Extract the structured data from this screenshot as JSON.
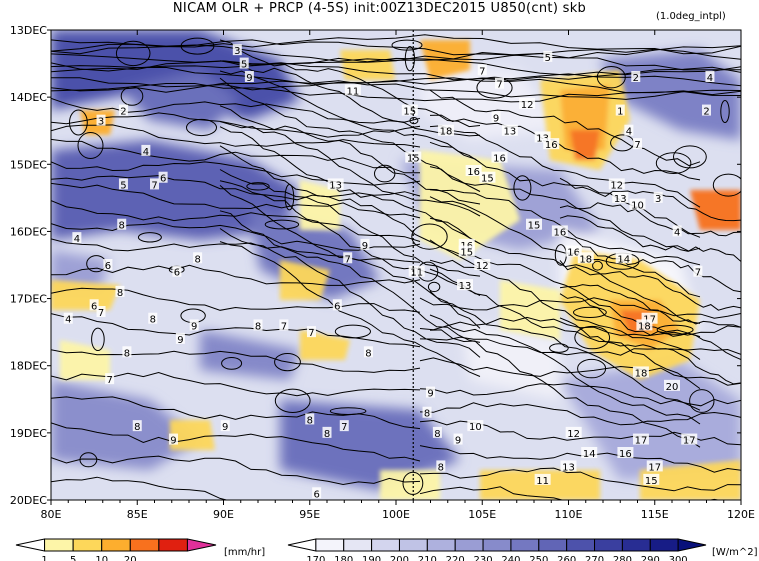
{
  "title": "NICAM  OLR + PRCP (4-5S) init:00Z13DEC2015  U850(cnt) skb",
  "note": "(1.0deg_intpl)",
  "chart_data": {
    "type": "heatmap",
    "x_tick_labels": [
      "80E",
      "85E",
      "90E",
      "95E",
      "100E",
      "105E",
      "110E",
      "115E",
      "120E"
    ],
    "x_tick_values": [
      80,
      85,
      90,
      95,
      100,
      105,
      110,
      115,
      120
    ],
    "y_tick_labels": [
      "13DEC",
      "14DEC",
      "15DEC",
      "16DEC",
      "17DEC",
      "18DEC",
      "19DEC",
      "20DEC"
    ],
    "y_tick_values": [
      13,
      14,
      15,
      16,
      17,
      18,
      19,
      20
    ],
    "xlim": [
      80,
      120
    ],
    "ylim": [
      13,
      20
    ],
    "reference_line_x": 101,
    "precip_legend": {
      "labels": [
        "1",
        "5",
        "10",
        "20"
      ],
      "unit": "[mm/hr]",
      "colors": [
        "#ffffff",
        "#fdf5a8",
        "#fdd75a",
        "#fdae2e",
        "#f8711e",
        "#e02010",
        "#e0309a"
      ]
    },
    "olr_legend": {
      "labels": [
        "170",
        "180",
        "190",
        "200",
        "210",
        "220",
        "230",
        "240",
        "250",
        "260",
        "270",
        "280",
        "290",
        "300"
      ],
      "unit": "[W/m^2]",
      "colors": [
        "#ffffff",
        "#f4f4fb",
        "#e5e6f4",
        "#d3d5ee",
        "#c0c3e6",
        "#aeb1de",
        "#9a9dd4",
        "#878bcb",
        "#7478c1",
        "#6165b6",
        "#4d52ab",
        "#3a3f9f",
        "#282d93",
        "#171c86",
        "#08107a"
      ]
    },
    "contour_labels": [
      {
        "x": 84.2,
        "y": 14.2,
        "t": "2"
      },
      {
        "x": 82.9,
        "y": 14.35,
        "t": "3"
      },
      {
        "x": 85.5,
        "y": 14.8,
        "t": "4"
      },
      {
        "x": 84.2,
        "y": 15.3,
        "t": "5"
      },
      {
        "x": 86.5,
        "y": 15.2,
        "t": "6"
      },
      {
        "x": 86.0,
        "y": 15.3,
        "t": "7"
      },
      {
        "x": 84.1,
        "y": 15.9,
        "t": "8"
      },
      {
        "x": 83.3,
        "y": 16.5,
        "t": "6"
      },
      {
        "x": 81.5,
        "y": 16.1,
        "t": "4"
      },
      {
        "x": 84.0,
        "y": 16.9,
        "t": "8"
      },
      {
        "x": 82.5,
        "y": 17.1,
        "t": "6"
      },
      {
        "x": 81.0,
        "y": 17.3,
        "t": "4"
      },
      {
        "x": 82.9,
        "y": 17.2,
        "t": "7"
      },
      {
        "x": 85.9,
        "y": 17.3,
        "t": "8"
      },
      {
        "x": 87.5,
        "y": 17.6,
        "t": "9"
      },
      {
        "x": 84.4,
        "y": 17.8,
        "t": "8"
      },
      {
        "x": 83.4,
        "y": 18.2,
        "t": "7"
      },
      {
        "x": 85.0,
        "y": 18.9,
        "t": "8"
      },
      {
        "x": 87.1,
        "y": 19.1,
        "t": "9"
      },
      {
        "x": 90.1,
        "y": 18.9,
        "t": "9"
      },
      {
        "x": 87.3,
        "y": 16.6,
        "t": "6"
      },
      {
        "x": 88.3,
        "y": 17.4,
        "t": "9"
      },
      {
        "x": 88.5,
        "y": 16.4,
        "t": "8"
      },
      {
        "x": 92.0,
        "y": 17.4,
        "t": "8"
      },
      {
        "x": 93.5,
        "y": 17.4,
        "t": "7"
      },
      {
        "x": 95.1,
        "y": 17.5,
        "t": "7"
      },
      {
        "x": 96.6,
        "y": 17.1,
        "t": "6"
      },
      {
        "x": 97.2,
        "y": 16.4,
        "t": "7"
      },
      {
        "x": 98.2,
        "y": 16.2,
        "t": "9"
      },
      {
        "x": 96.5,
        "y": 15.3,
        "t": "13"
      },
      {
        "x": 90.8,
        "y": 13.3,
        "t": "3"
      },
      {
        "x": 91.2,
        "y": 13.5,
        "t": "5"
      },
      {
        "x": 91.5,
        "y": 13.7,
        "t": "9"
      },
      {
        "x": 97.5,
        "y": 13.9,
        "t": "11"
      },
      {
        "x": 100.8,
        "y": 14.2,
        "t": "15"
      },
      {
        "x": 101.0,
        "y": 14.9,
        "t": "15"
      },
      {
        "x": 102.9,
        "y": 14.5,
        "t": "18"
      },
      {
        "x": 106.0,
        "y": 14.9,
        "t": "16"
      },
      {
        "x": 106.6,
        "y": 14.5,
        "t": "13"
      },
      {
        "x": 105.8,
        "y": 14.3,
        "t": "9"
      },
      {
        "x": 107.6,
        "y": 14.1,
        "t": "12"
      },
      {
        "x": 106.0,
        "y": 13.8,
        "t": "7"
      },
      {
        "x": 105.0,
        "y": 13.6,
        "t": "7"
      },
      {
        "x": 108.8,
        "y": 13.4,
        "t": "5"
      },
      {
        "x": 104.5,
        "y": 15.1,
        "t": "16"
      },
      {
        "x": 105.3,
        "y": 15.2,
        "t": "15"
      },
      {
        "x": 108.5,
        "y": 14.6,
        "t": "13"
      },
      {
        "x": 109.0,
        "y": 14.7,
        "t": "16"
      },
      {
        "x": 109.5,
        "y": 16.0,
        "t": "16"
      },
      {
        "x": 110.3,
        "y": 16.3,
        "t": "16"
      },
      {
        "x": 108.0,
        "y": 15.9,
        "t": "15"
      },
      {
        "x": 104.1,
        "y": 16.2,
        "t": "16"
      },
      {
        "x": 104.1,
        "y": 16.3,
        "t": "15"
      },
      {
        "x": 101.2,
        "y": 16.6,
        "t": "11"
      },
      {
        "x": 104.0,
        "y": 16.8,
        "t": "13"
      },
      {
        "x": 105.0,
        "y": 16.5,
        "t": "12"
      },
      {
        "x": 113.0,
        "y": 14.2,
        "t": "1"
      },
      {
        "x": 113.9,
        "y": 13.7,
        "t": "2"
      },
      {
        "x": 118.2,
        "y": 13.7,
        "t": "4"
      },
      {
        "x": 118.0,
        "y": 14.2,
        "t": "2"
      },
      {
        "x": 113.5,
        "y": 14.5,
        "t": "4"
      },
      {
        "x": 114.0,
        "y": 14.7,
        "t": "7"
      },
      {
        "x": 112.8,
        "y": 15.3,
        "t": "12"
      },
      {
        "x": 113.0,
        "y": 15.5,
        "t": "13"
      },
      {
        "x": 114.0,
        "y": 15.6,
        "t": "10"
      },
      {
        "x": 115.2,
        "y": 15.5,
        "t": "3"
      },
      {
        "x": 116.3,
        "y": 16.0,
        "t": "4"
      },
      {
        "x": 117.5,
        "y": 16.6,
        "t": "7"
      },
      {
        "x": 113.2,
        "y": 16.4,
        "t": "14"
      },
      {
        "x": 111.0,
        "y": 16.4,
        "t": "18"
      },
      {
        "x": 114.7,
        "y": 17.3,
        "t": "17"
      },
      {
        "x": 114.4,
        "y": 17.4,
        "t": "18"
      },
      {
        "x": 114.2,
        "y": 18.1,
        "t": "18"
      },
      {
        "x": 116.0,
        "y": 18.3,
        "t": "20"
      },
      {
        "x": 114.2,
        "y": 19.1,
        "t": "17"
      },
      {
        "x": 117.0,
        "y": 19.1,
        "t": "17"
      },
      {
        "x": 115.0,
        "y": 19.5,
        "t": "17"
      },
      {
        "x": 113.3,
        "y": 19.3,
        "t": "16"
      },
      {
        "x": 110.3,
        "y": 19.0,
        "t": "12"
      },
      {
        "x": 111.2,
        "y": 19.3,
        "t": "14"
      },
      {
        "x": 110.0,
        "y": 19.5,
        "t": "13"
      },
      {
        "x": 108.5,
        "y": 19.7,
        "t": "11"
      },
      {
        "x": 114.8,
        "y": 19.7,
        "t": "15"
      },
      {
        "x": 104.6,
        "y": 18.9,
        "t": "10"
      },
      {
        "x": 103.6,
        "y": 19.1,
        "t": "9"
      },
      {
        "x": 102.0,
        "y": 18.4,
        "t": "9"
      },
      {
        "x": 101.8,
        "y": 18.7,
        "t": "8"
      },
      {
        "x": 102.6,
        "y": 19.5,
        "t": "8"
      },
      {
        "x": 98.4,
        "y": 17.8,
        "t": "8"
      },
      {
        "x": 97.0,
        "y": 18.9,
        "t": "7"
      },
      {
        "x": 96.0,
        "y": 19.0,
        "t": "8"
      },
      {
        "x": 95.0,
        "y": 18.8,
        "t": "8"
      },
      {
        "x": 95.4,
        "y": 19.9,
        "t": "6"
      },
      {
        "x": 102.4,
        "y": 19.0,
        "t": "8"
      }
    ]
  }
}
